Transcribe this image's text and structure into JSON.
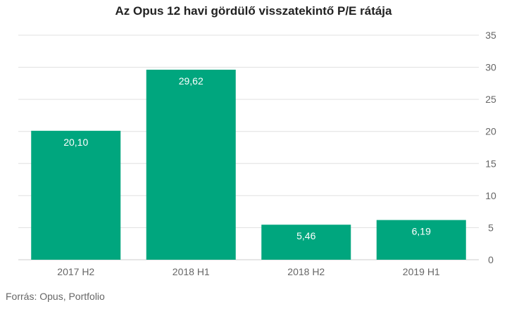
{
  "colors": {
    "bar": "#00a67e",
    "grid": "#e0e0e0",
    "axis_line": "#cccccc",
    "tick_text": "#666666",
    "label_text": "#ffffff"
  },
  "chart_data": {
    "type": "bar",
    "title": "Az Opus 12 havi gördülő visszatekintő P/E rátája",
    "categories": [
      "2017 H2",
      "2018 H1",
      "2018 H2",
      "2019 H1"
    ],
    "values": [
      20.1,
      29.62,
      5.46,
      6.19
    ],
    "data_labels": [
      "20,10",
      "29,62",
      "5,46",
      "6,19"
    ],
    "ylim": [
      0,
      35
    ],
    "yticks": [
      0,
      5,
      10,
      15,
      20,
      25,
      30,
      35
    ],
    "y_axis_position": "right",
    "grid": true,
    "legend": "none"
  },
  "footer": {
    "source": "Forrás: Opus, Portfolio"
  }
}
